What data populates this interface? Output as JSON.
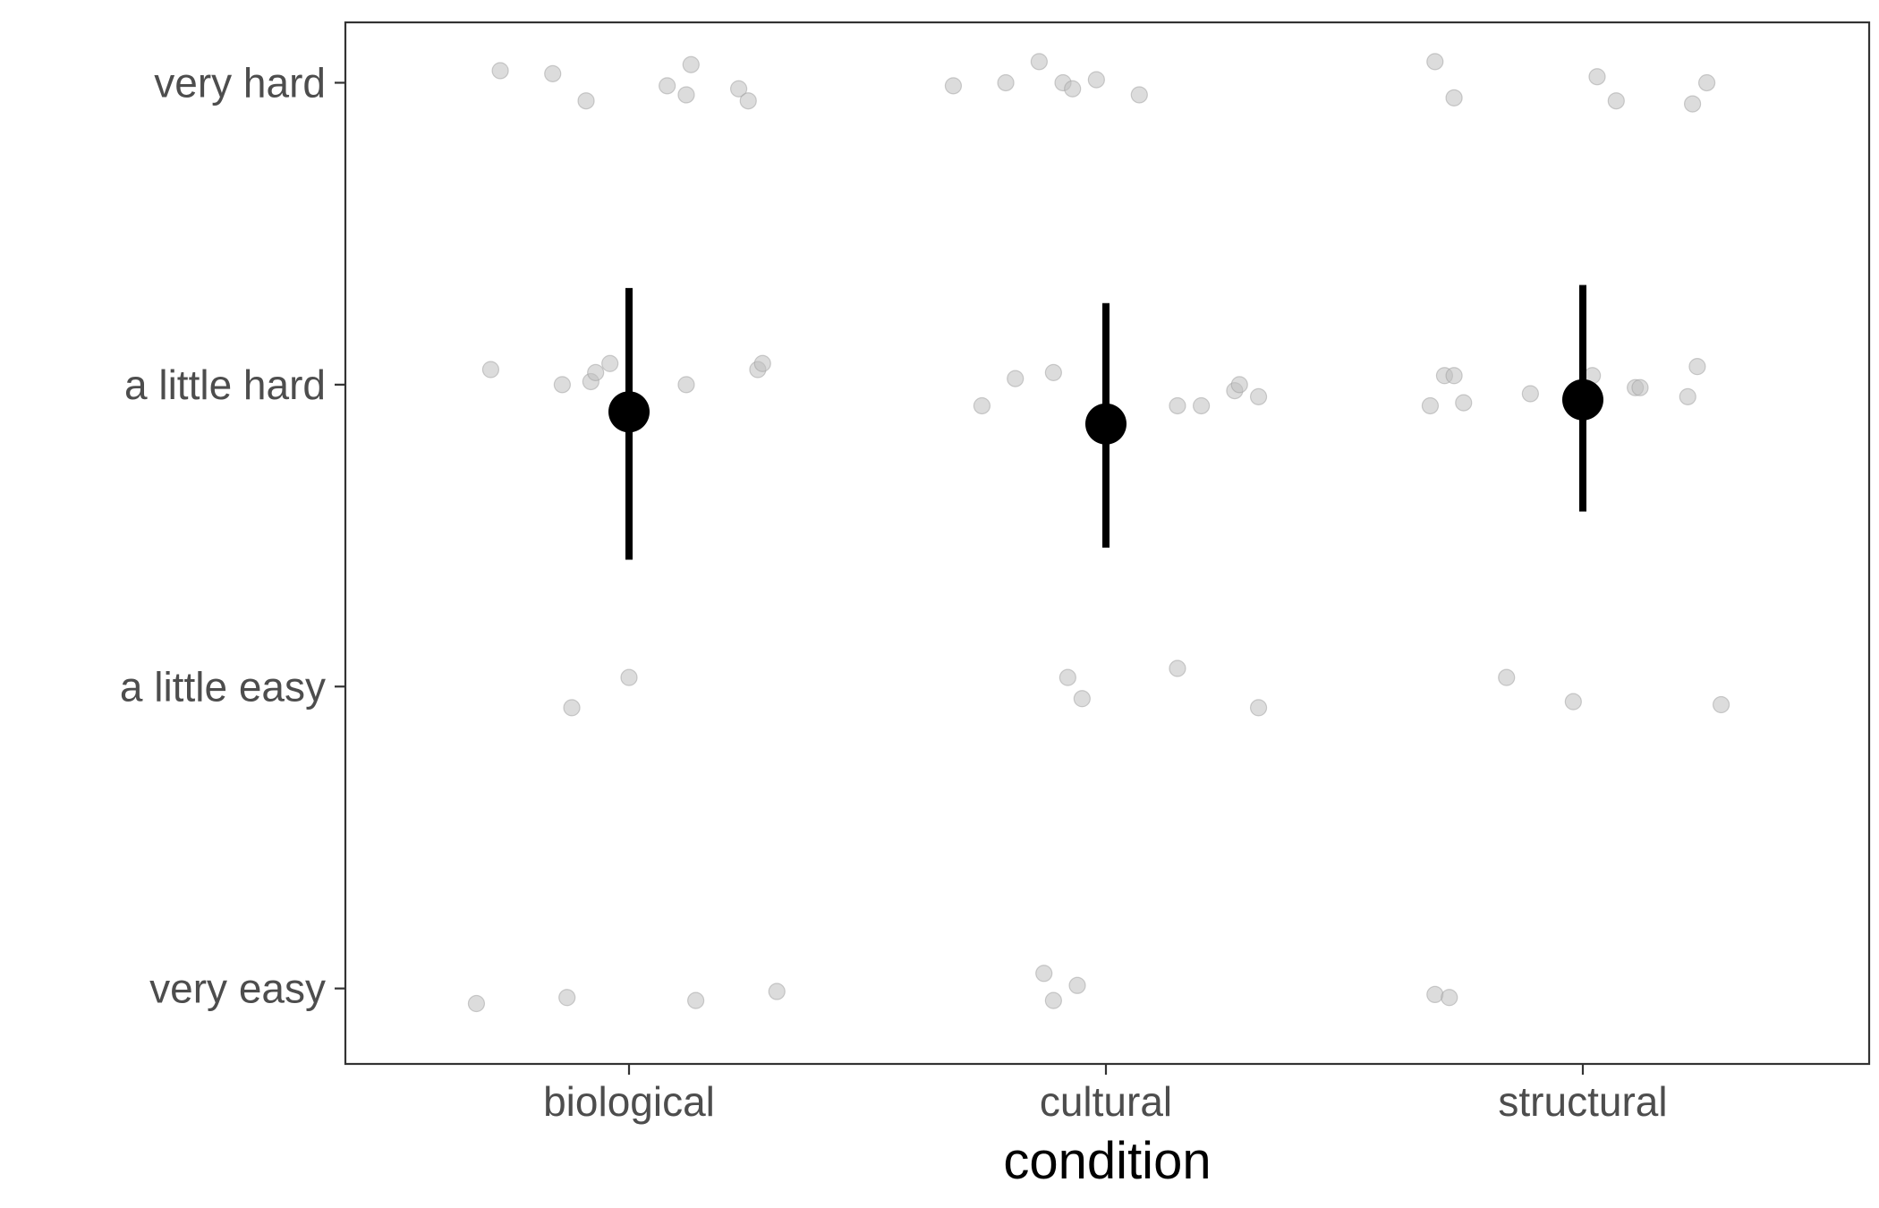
{
  "chart_data": {
    "type": "scatter",
    "title": "",
    "xlabel": "condition",
    "ylabel": "",
    "categories": [
      "biological",
      "cultural",
      "structural"
    ],
    "y_levels": [
      "very easy",
      "a little easy",
      "a little hard",
      "very hard"
    ],
    "ylim": [
      0.75,
      4.2
    ],
    "grid": false,
    "colors": {
      "raw_points": "#bfbfbf",
      "summary": "#000000",
      "frame": "#333333"
    },
    "raw_points": [
      {
        "category": "biological",
        "offset": -0.27,
        "y": 4.04
      },
      {
        "category": "biological",
        "offset": -0.16,
        "y": 4.03
      },
      {
        "category": "biological",
        "offset": -0.09,
        "y": 3.94
      },
      {
        "category": "biological",
        "offset": 0.08,
        "y": 3.99
      },
      {
        "category": "biological",
        "offset": 0.13,
        "y": 4.06
      },
      {
        "category": "biological",
        "offset": 0.12,
        "y": 3.96
      },
      {
        "category": "biological",
        "offset": 0.23,
        "y": 3.98
      },
      {
        "category": "biological",
        "offset": 0.25,
        "y": 3.94
      },
      {
        "category": "biological",
        "offset": -0.29,
        "y": 3.05
      },
      {
        "category": "biological",
        "offset": -0.14,
        "y": 3.0
      },
      {
        "category": "biological",
        "offset": -0.08,
        "y": 3.01
      },
      {
        "category": "biological",
        "offset": -0.07,
        "y": 3.04
      },
      {
        "category": "biological",
        "offset": -0.04,
        "y": 3.07
      },
      {
        "category": "biological",
        "offset": 0.12,
        "y": 3.0
      },
      {
        "category": "biological",
        "offset": 0.27,
        "y": 3.05
      },
      {
        "category": "biological",
        "offset": 0.28,
        "y": 3.07
      },
      {
        "category": "biological",
        "offset": 0.0,
        "y": 2.03
      },
      {
        "category": "biological",
        "offset": -0.12,
        "y": 1.93
      },
      {
        "category": "biological",
        "offset": -0.32,
        "y": 0.95
      },
      {
        "category": "biological",
        "offset": -0.13,
        "y": 0.97
      },
      {
        "category": "biological",
        "offset": 0.14,
        "y": 0.96
      },
      {
        "category": "biological",
        "offset": 0.31,
        "y": 0.99
      },
      {
        "category": "cultural",
        "offset": -0.32,
        "y": 3.99
      },
      {
        "category": "cultural",
        "offset": -0.21,
        "y": 4.0
      },
      {
        "category": "cultural",
        "offset": -0.14,
        "y": 4.07
      },
      {
        "category": "cultural",
        "offset": -0.09,
        "y": 4.0
      },
      {
        "category": "cultural",
        "offset": -0.07,
        "y": 3.98
      },
      {
        "category": "cultural",
        "offset": -0.02,
        "y": 4.01
      },
      {
        "category": "cultural",
        "offset": 0.07,
        "y": 3.96
      },
      {
        "category": "cultural",
        "offset": -0.26,
        "y": 2.93
      },
      {
        "category": "cultural",
        "offset": -0.19,
        "y": 3.02
      },
      {
        "category": "cultural",
        "offset": -0.11,
        "y": 3.04
      },
      {
        "category": "cultural",
        "offset": 0.15,
        "y": 2.93
      },
      {
        "category": "cultural",
        "offset": 0.2,
        "y": 2.93
      },
      {
        "category": "cultural",
        "offset": 0.27,
        "y": 2.98
      },
      {
        "category": "cultural",
        "offset": 0.28,
        "y": 3.0
      },
      {
        "category": "cultural",
        "offset": 0.32,
        "y": 2.96
      },
      {
        "category": "cultural",
        "offset": -0.08,
        "y": 2.03
      },
      {
        "category": "cultural",
        "offset": -0.05,
        "y": 1.96
      },
      {
        "category": "cultural",
        "offset": 0.15,
        "y": 2.06
      },
      {
        "category": "cultural",
        "offset": 0.32,
        "y": 1.93
      },
      {
        "category": "cultural",
        "offset": -0.13,
        "y": 1.05
      },
      {
        "category": "cultural",
        "offset": -0.06,
        "y": 1.01
      },
      {
        "category": "cultural",
        "offset": -0.11,
        "y": 0.96
      },
      {
        "category": "structural",
        "offset": -0.31,
        "y": 4.07
      },
      {
        "category": "structural",
        "offset": -0.27,
        "y": 3.95
      },
      {
        "category": "structural",
        "offset": 0.03,
        "y": 4.02
      },
      {
        "category": "structural",
        "offset": 0.07,
        "y": 3.94
      },
      {
        "category": "structural",
        "offset": 0.23,
        "y": 3.93
      },
      {
        "category": "structural",
        "offset": 0.26,
        "y": 4.0
      },
      {
        "category": "structural",
        "offset": -0.29,
        "y": 3.03
      },
      {
        "category": "structural",
        "offset": -0.27,
        "y": 3.03
      },
      {
        "category": "structural",
        "offset": -0.32,
        "y": 2.93
      },
      {
        "category": "structural",
        "offset": -0.25,
        "y": 2.94
      },
      {
        "category": "structural",
        "offset": -0.11,
        "y": 2.97
      },
      {
        "category": "structural",
        "offset": 0.02,
        "y": 3.03
      },
      {
        "category": "structural",
        "offset": 0.11,
        "y": 2.99
      },
      {
        "category": "structural",
        "offset": 0.12,
        "y": 2.99
      },
      {
        "category": "structural",
        "offset": 0.22,
        "y": 2.96
      },
      {
        "category": "structural",
        "offset": 0.24,
        "y": 3.06
      },
      {
        "category": "structural",
        "offset": -0.16,
        "y": 2.03
      },
      {
        "category": "structural",
        "offset": -0.02,
        "y": 1.95
      },
      {
        "category": "structural",
        "offset": 0.29,
        "y": 1.94
      },
      {
        "category": "structural",
        "offset": -0.31,
        "y": 0.98
      },
      {
        "category": "structural",
        "offset": -0.28,
        "y": 0.97
      }
    ],
    "summary": [
      {
        "category": "biological",
        "mean": 2.91,
        "lower": 2.42,
        "upper": 3.32
      },
      {
        "category": "cultural",
        "mean": 2.87,
        "lower": 2.46,
        "upper": 3.27
      },
      {
        "category": "structural",
        "mean": 2.95,
        "lower": 2.58,
        "upper": 3.33
      }
    ]
  }
}
